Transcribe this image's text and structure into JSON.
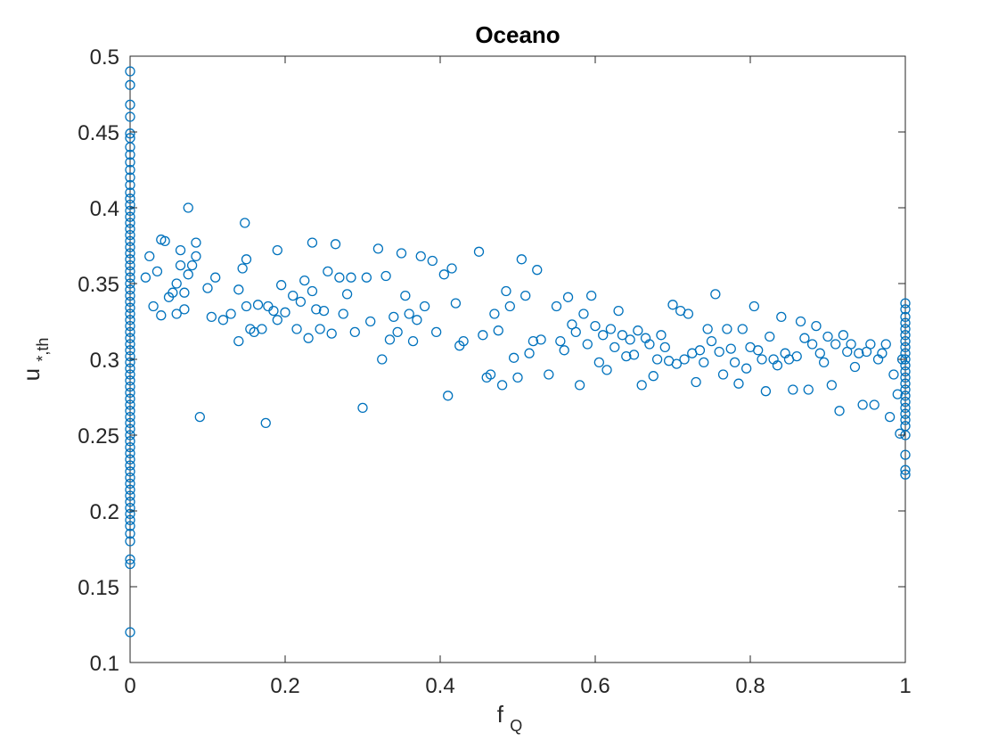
{
  "chart_data": {
    "type": "scatter",
    "title": "Oceano",
    "xlabel": {
      "base": "f",
      "sub": "Q"
    },
    "ylabel": {
      "base": "u",
      "sub": "*,th"
    },
    "xlim": [
      0,
      1
    ],
    "ylim": [
      0.1,
      0.5
    ],
    "xticks": [
      0,
      0.2,
      0.4,
      0.6,
      0.8,
      1
    ],
    "xtick_labels": [
      "0",
      "0.2",
      "0.4",
      "0.6",
      "0.8",
      "1"
    ],
    "yticks": [
      0.1,
      0.15,
      0.2,
      0.25,
      0.3,
      0.35,
      0.4,
      0.45,
      0.5
    ],
    "ytick_labels": [
      "0.1",
      "0.15",
      "0.2",
      "0.25",
      "0.3",
      "0.35",
      "0.4",
      "0.45",
      "0.5"
    ],
    "grid": false,
    "marker": "open-circle",
    "marker_color": "#0072BD",
    "series": [
      {
        "x_zero_values": [
          0.49,
          0.481,
          0.468,
          0.46,
          0.449,
          0.446,
          0.44,
          0.435,
          0.43,
          0.425,
          0.42,
          0.415,
          0.41,
          0.406,
          0.402,
          0.398,
          0.394,
          0.39,
          0.386,
          0.382,
          0.378,
          0.374,
          0.37,
          0.366,
          0.362,
          0.358,
          0.354,
          0.35,
          0.346,
          0.342,
          0.338,
          0.334,
          0.33,
          0.326,
          0.322,
          0.318,
          0.314,
          0.31,
          0.306,
          0.302,
          0.298,
          0.294,
          0.29,
          0.286,
          0.282,
          0.278,
          0.274,
          0.27,
          0.266,
          0.262,
          0.258,
          0.254,
          0.25,
          0.246,
          0.242,
          0.238,
          0.234,
          0.23,
          0.226,
          0.222,
          0.218,
          0.214,
          0.21,
          0.206,
          0.202,
          0.198,
          0.194,
          0.19,
          0.185,
          0.18,
          0.168,
          0.165,
          0.12
        ],
        "x_one_values": [
          0.337,
          0.333,
          0.328,
          0.324,
          0.32,
          0.316,
          0.312,
          0.308,
          0.304,
          0.3,
          0.296,
          0.292,
          0.288,
          0.284,
          0.28,
          0.276,
          0.272,
          0.268,
          0.264,
          0.26,
          0.256,
          0.25,
          0.237,
          0.227,
          0.224
        ],
        "points": [
          [
            0.02,
            0.354
          ],
          [
            0.025,
            0.368
          ],
          [
            0.03,
            0.335
          ],
          [
            0.035,
            0.358
          ],
          [
            0.04,
            0.379
          ],
          [
            0.04,
            0.329
          ],
          [
            0.045,
            0.378
          ],
          [
            0.05,
            0.341
          ],
          [
            0.055,
            0.344
          ],
          [
            0.06,
            0.35
          ],
          [
            0.06,
            0.33
          ],
          [
            0.065,
            0.372
          ],
          [
            0.065,
            0.362
          ],
          [
            0.07,
            0.344
          ],
          [
            0.07,
            0.333
          ],
          [
            0.075,
            0.4
          ],
          [
            0.075,
            0.356
          ],
          [
            0.08,
            0.362
          ],
          [
            0.085,
            0.377
          ],
          [
            0.085,
            0.368
          ],
          [
            0.09,
            0.262
          ],
          [
            0.1,
            0.347
          ],
          [
            0.105,
            0.328
          ],
          [
            0.11,
            0.354
          ],
          [
            0.12,
            0.326
          ],
          [
            0.13,
            0.33
          ],
          [
            0.14,
            0.346
          ],
          [
            0.14,
            0.312
          ],
          [
            0.145,
            0.36
          ],
          [
            0.148,
            0.39
          ],
          [
            0.15,
            0.366
          ],
          [
            0.15,
            0.335
          ],
          [
            0.155,
            0.32
          ],
          [
            0.16,
            0.318
          ],
          [
            0.165,
            0.336
          ],
          [
            0.17,
            0.32
          ],
          [
            0.175,
            0.258
          ],
          [
            0.178,
            0.335
          ],
          [
            0.185,
            0.332
          ],
          [
            0.19,
            0.372
          ],
          [
            0.19,
            0.326
          ],
          [
            0.195,
            0.349
          ],
          [
            0.2,
            0.331
          ],
          [
            0.21,
            0.342
          ],
          [
            0.215,
            0.32
          ],
          [
            0.22,
            0.338
          ],
          [
            0.225,
            0.352
          ],
          [
            0.23,
            0.314
          ],
          [
            0.235,
            0.377
          ],
          [
            0.235,
            0.345
          ],
          [
            0.24,
            0.333
          ],
          [
            0.245,
            0.32
          ],
          [
            0.25,
            0.332
          ],
          [
            0.255,
            0.358
          ],
          [
            0.26,
            0.317
          ],
          [
            0.265,
            0.376
          ],
          [
            0.27,
            0.354
          ],
          [
            0.275,
            0.33
          ],
          [
            0.28,
            0.343
          ],
          [
            0.285,
            0.354
          ],
          [
            0.29,
            0.318
          ],
          [
            0.3,
            0.268
          ],
          [
            0.305,
            0.354
          ],
          [
            0.31,
            0.325
          ],
          [
            0.32,
            0.373
          ],
          [
            0.325,
            0.3
          ],
          [
            0.33,
            0.355
          ],
          [
            0.335,
            0.313
          ],
          [
            0.34,
            0.328
          ],
          [
            0.345,
            0.318
          ],
          [
            0.35,
            0.37
          ],
          [
            0.355,
            0.342
          ],
          [
            0.36,
            0.33
          ],
          [
            0.365,
            0.312
          ],
          [
            0.37,
            0.326
          ],
          [
            0.375,
            0.368
          ],
          [
            0.38,
            0.335
          ],
          [
            0.39,
            0.365
          ],
          [
            0.395,
            0.318
          ],
          [
            0.405,
            0.356
          ],
          [
            0.41,
            0.276
          ],
          [
            0.415,
            0.36
          ],
          [
            0.42,
            0.337
          ],
          [
            0.425,
            0.309
          ],
          [
            0.43,
            0.312
          ],
          [
            0.45,
            0.371
          ],
          [
            0.455,
            0.316
          ],
          [
            0.46,
            0.288
          ],
          [
            0.465,
            0.29
          ],
          [
            0.47,
            0.33
          ],
          [
            0.475,
            0.319
          ],
          [
            0.48,
            0.283
          ],
          [
            0.485,
            0.345
          ],
          [
            0.49,
            0.335
          ],
          [
            0.495,
            0.301
          ],
          [
            0.5,
            0.288
          ],
          [
            0.505,
            0.366
          ],
          [
            0.51,
            0.342
          ],
          [
            0.515,
            0.304
          ],
          [
            0.52,
            0.312
          ],
          [
            0.525,
            0.359
          ],
          [
            0.53,
            0.313
          ],
          [
            0.54,
            0.29
          ],
          [
            0.55,
            0.335
          ],
          [
            0.555,
            0.312
          ],
          [
            0.56,
            0.306
          ],
          [
            0.565,
            0.341
          ],
          [
            0.57,
            0.323
          ],
          [
            0.575,
            0.318
          ],
          [
            0.58,
            0.283
          ],
          [
            0.585,
            0.33
          ],
          [
            0.59,
            0.31
          ],
          [
            0.595,
            0.342
          ],
          [
            0.6,
            0.322
          ],
          [
            0.605,
            0.298
          ],
          [
            0.61,
            0.316
          ],
          [
            0.615,
            0.293
          ],
          [
            0.62,
            0.32
          ],
          [
            0.625,
            0.308
          ],
          [
            0.63,
            0.332
          ],
          [
            0.635,
            0.316
          ],
          [
            0.64,
            0.302
          ],
          [
            0.645,
            0.313
          ],
          [
            0.65,
            0.303
          ],
          [
            0.655,
            0.319
          ],
          [
            0.66,
            0.283
          ],
          [
            0.665,
            0.314
          ],
          [
            0.67,
            0.31
          ],
          [
            0.675,
            0.289
          ],
          [
            0.68,
            0.3
          ],
          [
            0.685,
            0.316
          ],
          [
            0.69,
            0.308
          ],
          [
            0.695,
            0.299
          ],
          [
            0.7,
            0.336
          ],
          [
            0.705,
            0.297
          ],
          [
            0.71,
            0.332
          ],
          [
            0.715,
            0.3
          ],
          [
            0.72,
            0.33
          ],
          [
            0.725,
            0.304
          ],
          [
            0.73,
            0.285
          ],
          [
            0.735,
            0.306
          ],
          [
            0.74,
            0.298
          ],
          [
            0.745,
            0.32
          ],
          [
            0.75,
            0.312
          ],
          [
            0.755,
            0.343
          ],
          [
            0.76,
            0.305
          ],
          [
            0.765,
            0.29
          ],
          [
            0.77,
            0.32
          ],
          [
            0.775,
            0.307
          ],
          [
            0.78,
            0.298
          ],
          [
            0.785,
            0.284
          ],
          [
            0.79,
            0.32
          ],
          [
            0.795,
            0.294
          ],
          [
            0.8,
            0.308
          ],
          [
            0.805,
            0.335
          ],
          [
            0.81,
            0.306
          ],
          [
            0.815,
            0.3
          ],
          [
            0.82,
            0.279
          ],
          [
            0.825,
            0.315
          ],
          [
            0.83,
            0.3
          ],
          [
            0.835,
            0.296
          ],
          [
            0.84,
            0.328
          ],
          [
            0.845,
            0.304
          ],
          [
            0.85,
            0.3
          ],
          [
            0.855,
            0.28
          ],
          [
            0.86,
            0.302
          ],
          [
            0.865,
            0.325
          ],
          [
            0.87,
            0.314
          ],
          [
            0.875,
            0.28
          ],
          [
            0.88,
            0.31
          ],
          [
            0.885,
            0.322
          ],
          [
            0.89,
            0.304
          ],
          [
            0.895,
            0.298
          ],
          [
            0.9,
            0.315
          ],
          [
            0.905,
            0.283
          ],
          [
            0.91,
            0.31
          ],
          [
            0.915,
            0.266
          ],
          [
            0.92,
            0.316
          ],
          [
            0.925,
            0.305
          ],
          [
            0.93,
            0.31
          ],
          [
            0.935,
            0.295
          ],
          [
            0.94,
            0.304
          ],
          [
            0.945,
            0.27
          ],
          [
            0.95,
            0.305
          ],
          [
            0.955,
            0.31
          ],
          [
            0.96,
            0.27
          ],
          [
            0.965,
            0.3
          ],
          [
            0.97,
            0.304
          ],
          [
            0.975,
            0.31
          ],
          [
            0.98,
            0.262
          ],
          [
            0.985,
            0.29
          ],
          [
            0.99,
            0.277
          ],
          [
            0.993,
            0.251
          ],
          [
            0.996,
            0.3
          ]
        ]
      }
    ]
  }
}
